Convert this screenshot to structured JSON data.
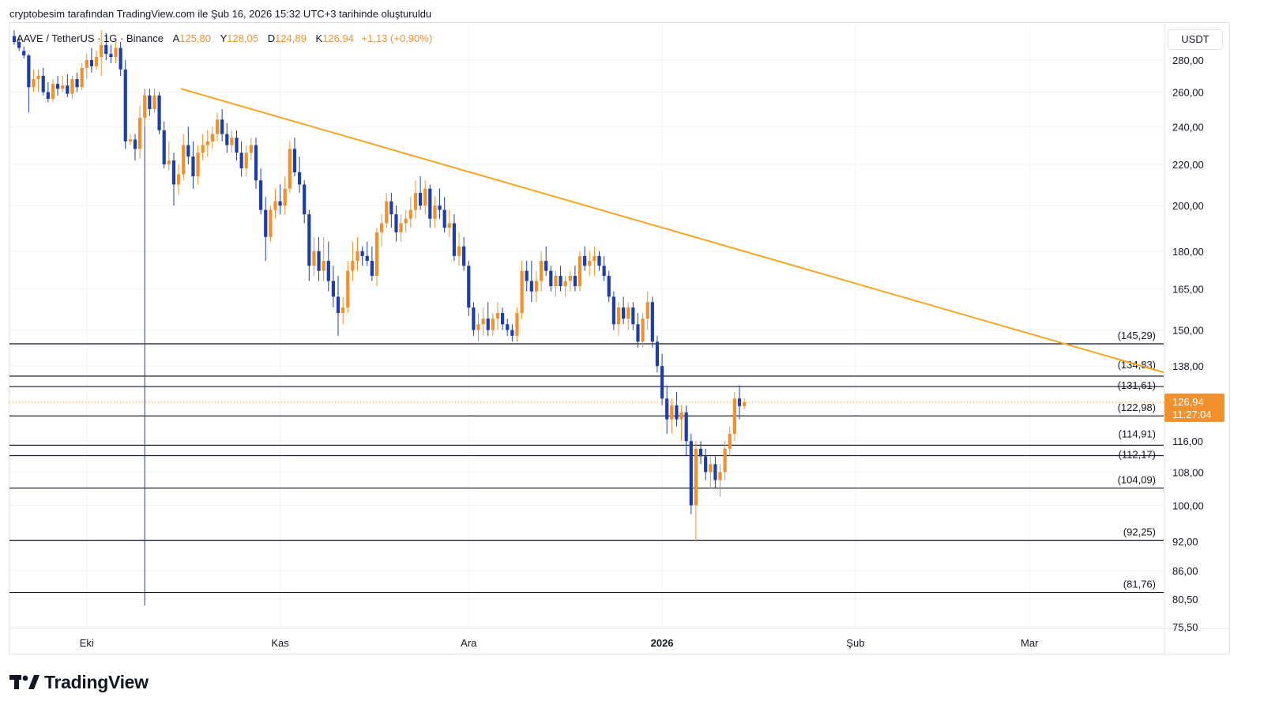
{
  "caption": "cryptobesim tarafından TradingView.com ile Şub 16, 2026 15:32 UTC+3 tarihinde oluşturuldu",
  "legend": {
    "symbol": "AAVE / TetherUS · 1G · Binance",
    "open_label": "A",
    "open": "125,80",
    "high_label": "Y",
    "high": "128,05",
    "low_label": "D",
    "low": "124,89",
    "close_label": "K",
    "close": "126,94",
    "change": "+1,13 (+0,90%)"
  },
  "currency_button": "USDT",
  "brand": {
    "name": "TradingView",
    "logo_text": "TV"
  },
  "colors": {
    "up": "#f0912e",
    "down": "#1e3ea6",
    "trendline": "#f5a623",
    "level": "#131722",
    "price_label_bg": "#f0912e"
  },
  "last_price": {
    "value": "126,94",
    "countdown": "11:27:04"
  },
  "chart_data": {
    "type": "candlestick",
    "title": "AAVE / TetherUS · 1G · Binance",
    "scale": "log",
    "ylim": [
      75.5,
      300
    ],
    "x_ticks": [
      "Eki",
      "Kas",
      "Ara",
      "2026",
      "Şub",
      "Mar"
    ],
    "y_ticks": [
      "280,00",
      "260,00",
      "240,00",
      "220,00",
      "200,00",
      "180,00",
      "165,00",
      "150,00",
      "138,00",
      "116,00",
      "108,00",
      "100,00",
      "92,00",
      "86,00",
      "80,50",
      "75,50"
    ],
    "levels": [
      {
        "value": 145.29,
        "label": "(145,29)"
      },
      {
        "value": 134.83,
        "label": "(134,83)"
      },
      {
        "value": 131.61,
        "label": "(131,61)"
      },
      {
        "value": 122.98,
        "label": "(122,98)"
      },
      {
        "value": 114.91,
        "label": "(114,91)"
      },
      {
        "value": 112.17,
        "label": "(112,17)"
      },
      {
        "value": 104.09,
        "label": "(104,09)"
      },
      {
        "value": 92.25,
        "label": "(92,25)"
      },
      {
        "value": 81.76,
        "label": "(81,76)"
      }
    ],
    "trendline": {
      "start_day": 35,
      "start_value": 262,
      "end_day": 243,
      "end_value": 136
    },
    "candle_ohlc": [
      [
        0,
        296,
        300,
        290,
        292
      ],
      [
        1,
        292,
        296,
        286,
        288
      ],
      [
        2,
        286,
        289,
        281,
        283
      ],
      [
        3,
        283,
        284,
        248,
        263
      ],
      [
        4,
        263,
        274,
        260,
        268
      ],
      [
        5,
        268,
        274,
        260,
        270
      ],
      [
        6,
        270,
        275,
        258,
        260
      ],
      [
        7,
        260,
        266,
        254,
        256
      ],
      [
        8,
        256,
        268,
        254,
        265
      ],
      [
        9,
        265,
        270,
        258,
        262
      ],
      [
        10,
        262,
        270,
        260,
        264
      ],
      [
        11,
        264,
        271,
        257,
        259
      ],
      [
        12,
        259,
        270,
        256,
        268
      ],
      [
        13,
        268,
        272,
        260,
        263
      ],
      [
        14,
        263,
        278,
        261,
        275
      ],
      [
        15,
        275,
        284,
        268,
        280
      ],
      [
        16,
        280,
        288,
        272,
        276
      ],
      [
        17,
        276,
        286,
        274,
        282
      ],
      [
        18,
        282,
        300,
        270,
        290
      ],
      [
        19,
        290,
        298,
        280,
        284
      ],
      [
        20,
        284,
        290,
        278,
        282
      ],
      [
        21,
        282,
        292,
        278,
        288
      ],
      [
        22,
        288,
        292,
        270,
        274
      ],
      [
        23,
        274,
        280,
        228,
        232
      ],
      [
        24,
        232,
        236,
        230,
        233
      ],
      [
        25,
        233,
        236,
        222,
        228
      ],
      [
        26,
        228,
        252,
        223,
        245
      ],
      [
        27,
        245,
        262,
        240,
        258
      ],
      [
        28,
        258,
        262,
        246,
        250
      ],
      [
        29,
        250,
        262,
        248,
        258
      ],
      [
        30,
        258,
        260,
        236,
        238
      ],
      [
        31,
        238,
        243,
        218,
        220
      ],
      [
        32,
        220,
        232,
        217,
        222
      ],
      [
        33,
        222,
        226,
        200,
        210
      ],
      [
        34,
        210,
        220,
        205,
        215
      ],
      [
        35,
        215,
        236,
        212,
        230
      ],
      [
        36,
        230,
        240,
        220,
        224
      ],
      [
        37,
        224,
        232,
        208,
        214
      ],
      [
        38,
        214,
        230,
        210,
        226
      ],
      [
        39,
        226,
        236,
        222,
        230
      ],
      [
        40,
        230,
        238,
        224,
        232
      ],
      [
        41,
        232,
        240,
        228,
        236
      ],
      [
        42,
        236,
        248,
        232,
        244
      ],
      [
        43,
        244,
        250,
        232,
        236
      ],
      [
        44,
        236,
        242,
        226,
        230
      ],
      [
        45,
        230,
        238,
        226,
        234
      ],
      [
        46,
        234,
        238,
        222,
        226
      ],
      [
        47,
        226,
        232,
        214,
        218
      ],
      [
        48,
        218,
        230,
        214,
        226
      ],
      [
        49,
        226,
        234,
        222,
        230
      ],
      [
        50,
        230,
        234,
        208,
        212
      ],
      [
        51,
        212,
        218,
        196,
        198
      ],
      [
        52,
        198,
        204,
        176,
        186
      ],
      [
        53,
        186,
        200,
        184,
        198
      ],
      [
        54,
        198,
        208,
        194,
        202
      ],
      [
        55,
        202,
        210,
        196,
        200
      ],
      [
        56,
        200,
        214,
        196,
        208
      ],
      [
        57,
        208,
        232,
        206,
        228
      ],
      [
        58,
        228,
        234,
        214,
        216
      ],
      [
        59,
        216,
        224,
        206,
        210
      ],
      [
        60,
        210,
        212,
        192,
        196
      ],
      [
        61,
        196,
        198,
        168,
        174
      ],
      [
        62,
        174,
        186,
        170,
        180
      ],
      [
        63,
        180,
        186,
        168,
        172
      ],
      [
        64,
        172,
        186,
        168,
        176
      ],
      [
        65,
        176,
        184,
        164,
        168
      ],
      [
        66,
        168,
        174,
        158,
        162
      ],
      [
        67,
        162,
        170,
        148,
        156
      ],
      [
        68,
        156,
        162,
        152,
        158
      ],
      [
        69,
        158,
        176,
        156,
        172
      ],
      [
        70,
        172,
        184,
        168,
        176
      ],
      [
        71,
        176,
        186,
        172,
        180
      ],
      [
        72,
        180,
        182,
        174,
        178
      ],
      [
        73,
        178,
        184,
        174,
        176
      ],
      [
        74,
        176,
        182,
        168,
        170
      ],
      [
        75,
        170,
        190,
        166,
        188
      ],
      [
        76,
        188,
        196,
        182,
        192
      ],
      [
        77,
        192,
        206,
        190,
        202
      ],
      [
        78,
        202,
        206,
        190,
        196
      ],
      [
        79,
        196,
        200,
        184,
        188
      ],
      [
        80,
        188,
        196,
        184,
        192
      ],
      [
        81,
        192,
        198,
        188,
        194
      ],
      [
        82,
        194,
        204,
        190,
        198
      ],
      [
        83,
        198,
        212,
        194,
        206
      ],
      [
        84,
        206,
        214,
        198,
        200
      ],
      [
        85,
        200,
        212,
        196,
        208
      ],
      [
        86,
        208,
        210,
        190,
        194
      ],
      [
        87,
        194,
        204,
        190,
        200
      ],
      [
        88,
        200,
        208,
        194,
        198
      ],
      [
        89,
        198,
        204,
        188,
        190
      ],
      [
        90,
        190,
        198,
        186,
        192
      ],
      [
        91,
        192,
        196,
        176,
        178
      ],
      [
        92,
        178,
        188,
        174,
        182
      ],
      [
        93,
        182,
        186,
        172,
        174
      ],
      [
        94,
        174,
        176,
        155,
        158
      ],
      [
        95,
        158,
        160,
        148,
        150
      ],
      [
        96,
        150,
        156,
        146,
        152
      ],
      [
        97,
        152,
        158,
        148,
        154
      ],
      [
        98,
        154,
        160,
        148,
        150
      ],
      [
        99,
        150,
        156,
        148,
        154
      ],
      [
        100,
        154,
        160,
        150,
        156
      ],
      [
        101,
        156,
        158,
        150,
        152
      ],
      [
        102,
        152,
        154,
        148,
        150
      ],
      [
        103,
        150,
        152,
        146,
        148
      ],
      [
        104,
        148,
        158,
        146,
        156
      ],
      [
        105,
        156,
        176,
        154,
        172
      ],
      [
        106,
        172,
        176,
        164,
        168
      ],
      [
        107,
        168,
        176,
        160,
        164
      ],
      [
        108,
        164,
        172,
        160,
        168
      ],
      [
        109,
        168,
        180,
        164,
        176
      ],
      [
        110,
        176,
        182,
        170,
        172
      ],
      [
        111,
        172,
        174,
        164,
        166
      ],
      [
        112,
        166,
        172,
        162,
        170
      ],
      [
        113,
        170,
        174,
        164,
        166
      ],
      [
        114,
        166,
        170,
        162,
        168
      ],
      [
        115,
        168,
        172,
        164,
        170
      ],
      [
        116,
        170,
        174,
        164,
        166
      ],
      [
        117,
        166,
        180,
        164,
        178
      ],
      [
        118,
        178,
        182,
        172,
        174
      ],
      [
        119,
        174,
        180,
        170,
        176
      ],
      [
        120,
        176,
        182,
        170,
        178
      ],
      [
        121,
        178,
        180,
        172,
        174
      ],
      [
        122,
        174,
        178,
        168,
        170
      ],
      [
        123,
        170,
        172,
        160,
        162
      ],
      [
        124,
        162,
        164,
        150,
        152
      ],
      [
        125,
        152,
        160,
        148,
        158
      ],
      [
        126,
        158,
        162,
        152,
        154
      ],
      [
        127,
        154,
        160,
        150,
        158
      ],
      [
        128,
        158,
        160,
        150,
        152
      ],
      [
        129,
        152,
        156,
        144,
        146
      ],
      [
        130,
        146,
        156,
        144,
        154
      ],
      [
        131,
        154,
        164,
        150,
        160
      ],
      [
        132,
        160,
        162,
        144,
        146
      ],
      [
        133,
        146,
        148,
        136,
        138
      ],
      [
        134,
        138,
        142,
        126,
        128
      ],
      [
        135,
        128,
        132,
        118,
        122
      ],
      [
        136,
        122,
        128,
        118,
        126
      ],
      [
        137,
        126,
        130,
        120,
        122
      ],
      [
        138,
        122,
        126,
        116,
        124
      ],
      [
        139,
        124,
        126,
        112,
        116
      ],
      [
        140,
        116,
        118,
        98,
        100
      ],
      [
        141,
        100,
        116,
        92,
        114
      ],
      [
        142,
        114,
        116,
        110,
        112
      ],
      [
        143,
        112,
        114,
        106,
        108
      ],
      [
        144,
        108,
        112,
        104,
        110
      ],
      [
        145,
        110,
        112,
        104,
        106
      ],
      [
        146,
        106,
        110,
        102,
        108
      ],
      [
        147,
        108,
        116,
        106,
        114
      ],
      [
        148,
        114,
        120,
        112,
        118
      ],
      [
        149,
        118,
        130,
        116,
        128
      ],
      [
        150,
        128,
        132,
        122,
        125.8
      ],
      [
        151,
        125.8,
        128.05,
        124.89,
        126.94
      ]
    ]
  }
}
